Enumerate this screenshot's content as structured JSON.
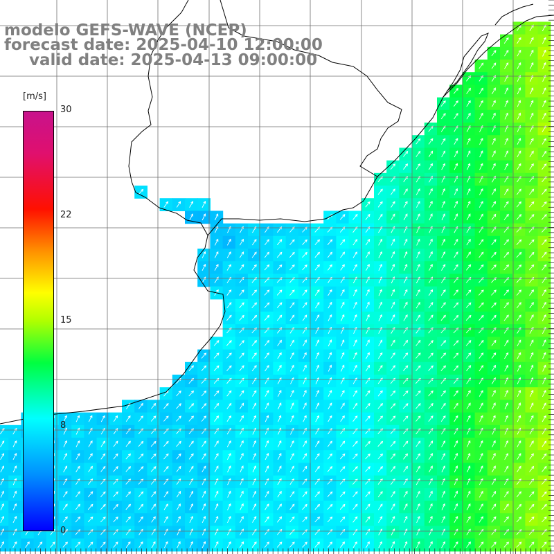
{
  "map": {
    "title": "modelo GEFS-WAVE (NCEP)",
    "forecast_date_line": "forecast date: 2025-04-10 12:00:00",
    "valid_date_line": "valid date: 2025-04-13 09:00:00",
    "variable": "wind speed",
    "colors": {
      "background": "#ffffff",
      "land": "#ffffff",
      "coastline": "#000000",
      "grid": "#6e6e6e",
      "arrows": "#ffffff",
      "title_text": "#808080"
    }
  },
  "colorbar": {
    "unit": "[m/s]",
    "ticks": [
      "30",
      "22",
      "15",
      "8",
      "0"
    ],
    "tick_values": [
      30,
      22,
      15,
      8,
      0
    ],
    "range": [
      0,
      30
    ],
    "stops": [
      {
        "v": 0,
        "c": "#0000ff"
      },
      {
        "v": 4,
        "c": "#0090ff"
      },
      {
        "v": 8,
        "c": "#00ffff"
      },
      {
        "v": 12,
        "c": "#00ff40"
      },
      {
        "v": 15,
        "c": "#b0ff00"
      },
      {
        "v": 17,
        "c": "#ffff00"
      },
      {
        "v": 20,
        "c": "#ff9000"
      },
      {
        "v": 23,
        "c": "#ff1000"
      },
      {
        "v": 27,
        "c": "#e0106e"
      },
      {
        "v": 30,
        "c": "#c8128c"
      }
    ]
  },
  "wind_field": {
    "sea_typical_speed": 8.5,
    "river_plate_speed": 5,
    "offshore_east_speed": 12.5,
    "arrow_direction": "toward north-east"
  }
}
